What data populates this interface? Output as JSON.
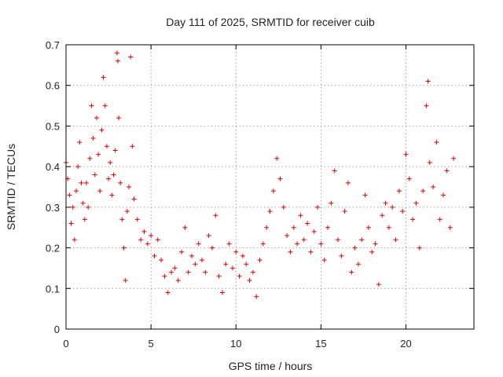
{
  "chart_data": {
    "type": "scatter",
    "title": "Day 111 of 2025, SRMTID for receiver cuib",
    "xlabel": "GPS time / hours",
    "ylabel": "SRMTID / TECUs",
    "xlim": [
      0,
      24
    ],
    "ylim": [
      0,
      0.7
    ],
    "xticks": [
      0,
      5,
      10,
      15,
      20
    ],
    "yticks": [
      0,
      0.1,
      0.2,
      0.3,
      0.4,
      0.5,
      0.6,
      0.7
    ],
    "xtick_labels": [
      "0",
      "5",
      "10",
      "15",
      "20"
    ],
    "ytick_labels": [
      "0",
      "0.1",
      "0.2",
      "0.3",
      "0.4",
      "0.5",
      "0.6",
      "0.7"
    ],
    "grid": true,
    "marker": "+",
    "color": "#e00000",
    "series": [
      {
        "name": "cuib",
        "points": [
          [
            0.0,
            0.41
          ],
          [
            0.1,
            0.37
          ],
          [
            0.2,
            0.33
          ],
          [
            0.3,
            0.26
          ],
          [
            0.4,
            0.3
          ],
          [
            0.5,
            0.22
          ],
          [
            0.6,
            0.34
          ],
          [
            0.7,
            0.4
          ],
          [
            0.8,
            0.46
          ],
          [
            0.9,
            0.36
          ],
          [
            1.0,
            0.31
          ],
          [
            1.1,
            0.27
          ],
          [
            1.2,
            0.36
          ],
          [
            1.3,
            0.3
          ],
          [
            1.4,
            0.42
          ],
          [
            1.5,
            0.55
          ],
          [
            1.6,
            0.47
          ],
          [
            1.7,
            0.38
          ],
          [
            1.8,
            0.52
          ],
          [
            1.9,
            0.43
          ],
          [
            2.0,
            0.34
          ],
          [
            2.1,
            0.49
          ],
          [
            2.2,
            0.62
          ],
          [
            2.3,
            0.55
          ],
          [
            2.4,
            0.45
          ],
          [
            2.5,
            0.37
          ],
          [
            2.6,
            0.41
          ],
          [
            2.7,
            0.33
          ],
          [
            2.8,
            0.38
          ],
          [
            2.9,
            0.44
          ],
          [
            3.0,
            0.68
          ],
          [
            3.05,
            0.66
          ],
          [
            3.1,
            0.52
          ],
          [
            3.2,
            0.36
          ],
          [
            3.3,
            0.27
          ],
          [
            3.4,
            0.2
          ],
          [
            3.5,
            0.12
          ],
          [
            3.6,
            0.29
          ],
          [
            3.7,
            0.35
          ],
          [
            3.8,
            0.67
          ],
          [
            3.9,
            0.45
          ],
          [
            4.0,
            0.32
          ],
          [
            4.2,
            0.27
          ],
          [
            4.4,
            0.22
          ],
          [
            4.6,
            0.24
          ],
          [
            4.8,
            0.21
          ],
          [
            5.0,
            0.23
          ],
          [
            5.2,
            0.18
          ],
          [
            5.4,
            0.22
          ],
          [
            5.6,
            0.17
          ],
          [
            5.8,
            0.13
          ],
          [
            6.0,
            0.09
          ],
          [
            6.2,
            0.14
          ],
          [
            6.4,
            0.15
          ],
          [
            6.6,
            0.12
          ],
          [
            6.8,
            0.19
          ],
          [
            7.0,
            0.25
          ],
          [
            7.2,
            0.14
          ],
          [
            7.4,
            0.18
          ],
          [
            7.6,
            0.16
          ],
          [
            7.8,
            0.21
          ],
          [
            8.0,
            0.17
          ],
          [
            8.2,
            0.14
          ],
          [
            8.4,
            0.23
          ],
          [
            8.6,
            0.2
          ],
          [
            8.8,
            0.28
          ],
          [
            9.0,
            0.13
          ],
          [
            9.2,
            0.09
          ],
          [
            9.4,
            0.16
          ],
          [
            9.6,
            0.21
          ],
          [
            9.8,
            0.15
          ],
          [
            10.0,
            0.19
          ],
          [
            10.2,
            0.13
          ],
          [
            10.4,
            0.18
          ],
          [
            10.6,
            0.16
          ],
          [
            10.8,
            0.12
          ],
          [
            11.0,
            0.14
          ],
          [
            11.2,
            0.08
          ],
          [
            11.4,
            0.17
          ],
          [
            11.6,
            0.21
          ],
          [
            11.8,
            0.25
          ],
          [
            12.0,
            0.29
          ],
          [
            12.2,
            0.34
          ],
          [
            12.4,
            0.42
          ],
          [
            12.6,
            0.37
          ],
          [
            12.8,
            0.3
          ],
          [
            13.0,
            0.23
          ],
          [
            13.2,
            0.19
          ],
          [
            13.4,
            0.25
          ],
          [
            13.6,
            0.21
          ],
          [
            13.8,
            0.28
          ],
          [
            14.0,
            0.22
          ],
          [
            14.2,
            0.26
          ],
          [
            14.4,
            0.19
          ],
          [
            14.6,
            0.24
          ],
          [
            14.8,
            0.3
          ],
          [
            15.0,
            0.21
          ],
          [
            15.2,
            0.17
          ],
          [
            15.4,
            0.25
          ],
          [
            15.6,
            0.31
          ],
          [
            15.8,
            0.39
          ],
          [
            16.0,
            0.22
          ],
          [
            16.2,
            0.18
          ],
          [
            16.4,
            0.29
          ],
          [
            16.6,
            0.36
          ],
          [
            16.8,
            0.14
          ],
          [
            17.0,
            0.2
          ],
          [
            17.2,
            0.16
          ],
          [
            17.4,
            0.22
          ],
          [
            17.6,
            0.33
          ],
          [
            17.8,
            0.25
          ],
          [
            18.0,
            0.19
          ],
          [
            18.2,
            0.21
          ],
          [
            18.4,
            0.11
          ],
          [
            18.6,
            0.28
          ],
          [
            18.8,
            0.31
          ],
          [
            19.0,
            0.25
          ],
          [
            19.2,
            0.3
          ],
          [
            19.4,
            0.22
          ],
          [
            19.6,
            0.34
          ],
          [
            19.8,
            0.29
          ],
          [
            20.0,
            0.43
          ],
          [
            20.2,
            0.37
          ],
          [
            20.4,
            0.27
          ],
          [
            20.6,
            0.31
          ],
          [
            20.8,
            0.2
          ],
          [
            21.0,
            0.34
          ],
          [
            21.2,
            0.55
          ],
          [
            21.3,
            0.61
          ],
          [
            21.4,
            0.41
          ],
          [
            21.6,
            0.35
          ],
          [
            21.8,
            0.46
          ],
          [
            22.0,
            0.27
          ],
          [
            22.2,
            0.33
          ],
          [
            22.4,
            0.39
          ],
          [
            22.6,
            0.25
          ],
          [
            22.8,
            0.42
          ]
        ]
      }
    ]
  }
}
